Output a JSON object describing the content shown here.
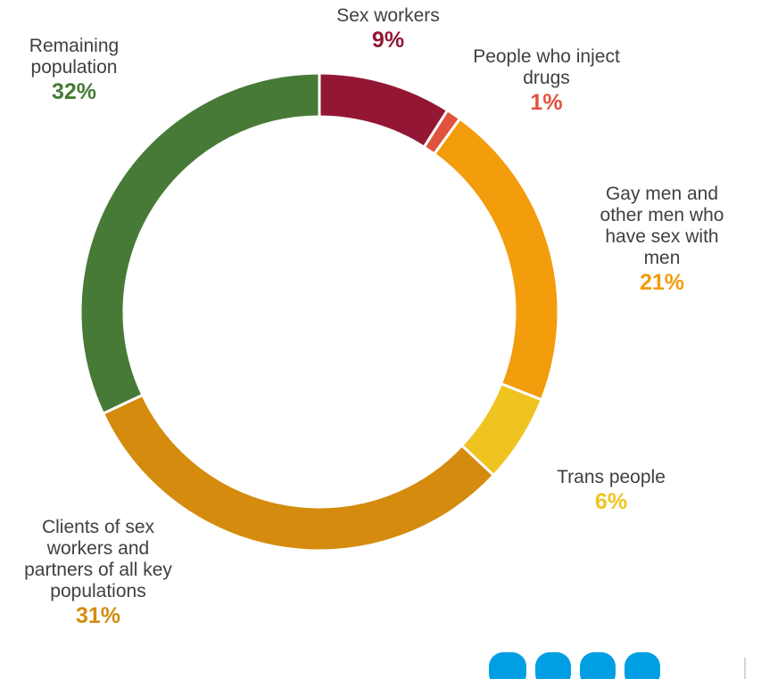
{
  "chart_data": {
    "type": "pie",
    "donut": true,
    "title": "",
    "slices": [
      {
        "label": "Sex workers",
        "pct_label": "9%",
        "value": 9,
        "color": "#931734"
      },
      {
        "label": "People who inject drugs",
        "pct_label": "1%",
        "value": 1,
        "color": "#e0533c"
      },
      {
        "label": "Gay men and other men who have sex with men",
        "pct_label": "21%",
        "value": 21,
        "color": "#f39c0c"
      },
      {
        "label": "Trans people",
        "pct_label": "6%",
        "value": 6,
        "color": "#f0c420"
      },
      {
        "label": "Clients of sex workers and partners of all key populations",
        "pct_label": "31%",
        "value": 31,
        "color": "#d48b0e"
      },
      {
        "label": "Remaining population",
        "pct_label": "32%",
        "value": 32,
        "color": "#477a36"
      }
    ]
  },
  "logo": {
    "color": "#009fe3"
  }
}
